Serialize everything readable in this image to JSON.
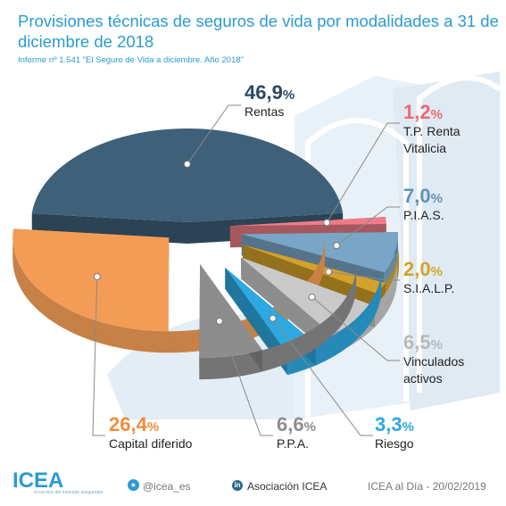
{
  "header": {
    "title": "Provisiones técnicas de seguros de vida por modalidades a 31 de diciembre de 2018",
    "subtitle": "Informe nº 1.541 \"El Seguro de Vida a diciembre. Año 2018\""
  },
  "chart_data": {
    "type": "pie",
    "title": "Provisiones técnicas de seguros de vida por modalidades a 31 de diciembre de 2018",
    "unit": "%",
    "slices": [
      {
        "name": "Rentas",
        "value": 46.9,
        "value_label": "46,9",
        "color": "#3e6079"
      },
      {
        "name": "T.P. Renta Vitalicia",
        "value": 1.2,
        "value_label": "1,2",
        "color": "#ee7d87"
      },
      {
        "name": "P.I.A.S.",
        "value": 7.0,
        "value_label": "7,0",
        "color": "#79a6c6"
      },
      {
        "name": "S.I.A.L.P.",
        "value": 2.0,
        "value_label": "2,0",
        "color": "#d4a22a"
      },
      {
        "name": "Vinculados activos",
        "value": 6.5,
        "value_label": "6,5",
        "color": "#c9c9c9"
      },
      {
        "name": "Riesgo",
        "value": 3.3,
        "value_label": "3,3",
        "color": "#2ea8e0"
      },
      {
        "name": "P.P.A.",
        "value": 6.6,
        "value_label": "6,6",
        "color": "#8d8d8d"
      },
      {
        "name": "Capital diferido",
        "value": 26.4,
        "value_label": "26,4",
        "color": "#f39c55"
      }
    ]
  },
  "labels": {
    "rentas": {
      "value": "46,9",
      "pct": "%",
      "name_1": "Rentas",
      "name_2": "",
      "color": "#2b4a62"
    },
    "tprv": {
      "value": "1,2",
      "pct": "%",
      "name_1": "T.P. Renta",
      "name_2": "Vitalicia",
      "color": "#e96a76"
    },
    "pias": {
      "value": "7,0",
      "pct": "%",
      "name_1": "P.I.A.S.",
      "name_2": "",
      "color": "#5f93b8"
    },
    "sialp": {
      "value": "2,0",
      "pct": "%",
      "name_1": "S.I.A.L.P.",
      "name_2": "",
      "color": "#d4a22a"
    },
    "vinc": {
      "value": "6,5",
      "pct": "%",
      "name_1": "Vinculados",
      "name_2": "activos",
      "color": "#b8b8b8"
    },
    "riesgo": {
      "value": "3,3",
      "pct": "%",
      "name_1": "Riesgo",
      "name_2": "",
      "color": "#2ea8e0"
    },
    "ppa": {
      "value": "6,6",
      "pct": "%",
      "name_1": "P.P.A.",
      "name_2": "",
      "color": "#8d8d8d"
    },
    "capital": {
      "value": "26,4",
      "pct": "%",
      "name_1": "Capital diferido",
      "name_2": "",
      "color": "#f08c3c"
    }
  },
  "footer": {
    "logo": "ICEA",
    "logo_tagline": "al servicio del mercado asegurador",
    "twitter": "@icea_es",
    "twitter_icon": "twitter-bird-icon",
    "linkedin": "Asociación ICEA",
    "linkedin_icon": "linkedin-icon",
    "linkedin_glyph": "in",
    "date_text": "ICEA al Día - 20/02/2019"
  },
  "colors": {
    "title": "#2a9bd1",
    "background_shape": "#e8f1f7"
  }
}
